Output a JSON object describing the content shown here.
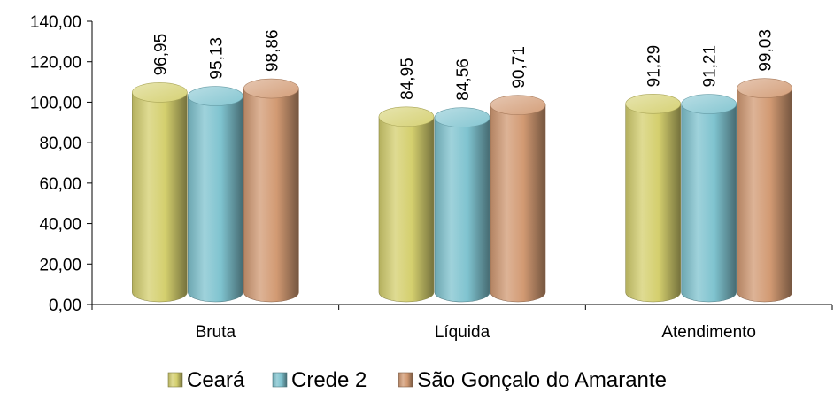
{
  "chart_data": {
    "type": "bar",
    "categories": [
      "Bruta",
      "Líquida",
      "Atendimento"
    ],
    "series": [
      {
        "name": "Ceará",
        "values": [
          96.95,
          84.95,
          91.29
        ],
        "labels": [
          "96,95",
          "84,95",
          "91,29"
        ],
        "color": "#d4cf6e"
      },
      {
        "name": "Crede 2",
        "values": [
          95.13,
          84.56,
          91.21
        ],
        "labels": [
          "95,13",
          "84,56",
          "91,21"
        ],
        "color": "#7fc3cf"
      },
      {
        "name": "São Gonçalo do Amarante",
        "values": [
          98.86,
          90.71,
          99.03
        ],
        "labels": [
          "98,86",
          "90,71",
          "99,03"
        ],
        "color": "#d29a73"
      }
    ],
    "ylim": [
      0,
      140
    ],
    "yticks": [
      0,
      20,
      40,
      60,
      80,
      100,
      120,
      140
    ],
    "ytick_labels": [
      "0,00",
      "20,00",
      "40,00",
      "60,00",
      "80,00",
      "100,00",
      "120,00",
      "140,00"
    ],
    "title": "",
    "xlabel": "",
    "ylabel": "",
    "grid": false,
    "legend_position": "bottom",
    "bar_style": "3d-cylinder"
  }
}
